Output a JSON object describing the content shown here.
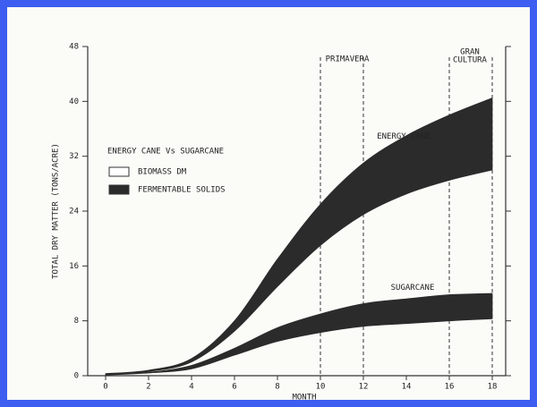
{
  "chart_data": {
    "type": "band",
    "xlabel": "MONTH",
    "ylabel": "TOTAL DRY MATTER (TONS/ACRE)",
    "x": [
      0,
      2,
      4,
      6,
      8,
      10,
      12,
      14,
      16,
      18
    ],
    "xlim": [
      0,
      18
    ],
    "xticks": [
      0,
      2,
      4,
      6,
      8,
      10,
      12,
      14,
      16,
      18
    ],
    "ylim": [
      0,
      48
    ],
    "yticks": [
      0,
      8,
      16,
      24,
      32,
      40,
      48
    ],
    "color": "#2b2b2b",
    "bands": [
      {
        "label": "ENERGY CANE",
        "upper": [
          0.3,
          0.8,
          2.5,
          8,
          17,
          25,
          31,
          35,
          38,
          40.5
        ],
        "lower": [
          0.2,
          0.6,
          2,
          6.5,
          13,
          19,
          23.5,
          26.5,
          28.5,
          30
        ]
      },
      {
        "label": "SUGARCANE",
        "upper": [
          0.2,
          0.5,
          1.5,
          4,
          7,
          9,
          10.5,
          11.2,
          11.8,
          12
        ],
        "lower": [
          0.1,
          0.4,
          1,
          3,
          5,
          6.3,
          7.2,
          7.6,
          8,
          8.3
        ]
      }
    ],
    "vlines": [
      10,
      12,
      16,
      18
    ],
    "annotations": [
      "PRIMAVERA",
      "GRAN",
      "CULTURA"
    ],
    "legend": {
      "title": "ENERGY CANE Vs SUGARCANE",
      "items": [
        "BIOMASS DM",
        "FERMENTABLE SOLIDS"
      ]
    }
  }
}
